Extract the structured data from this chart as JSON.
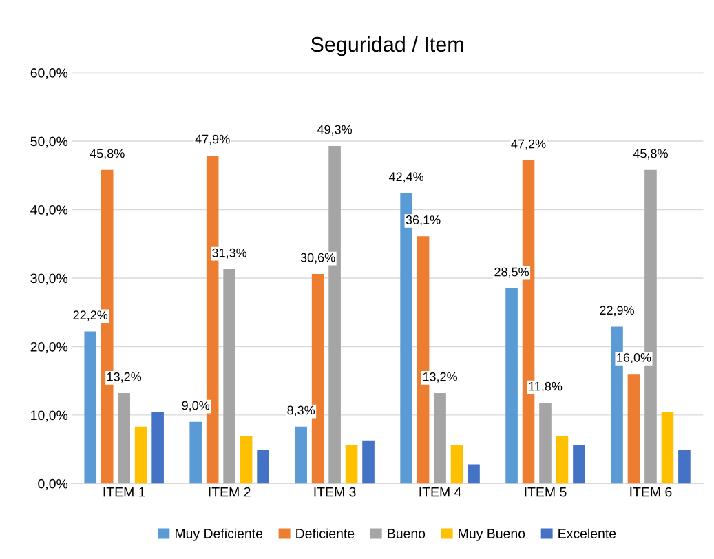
{
  "chart_data": {
    "type": "bar",
    "title": "Seguridad / Item",
    "categories": [
      "ITEM 1",
      "ITEM 2",
      "ITEM 3",
      "ITEM 4",
      "ITEM 5",
      "ITEM 6"
    ],
    "series": [
      {
        "name": "Muy Deficiente",
        "color": "#5b9bd5",
        "values": [
          22.2,
          9.0,
          8.3,
          42.4,
          28.5,
          22.9
        ],
        "value_labels": [
          "22,2%",
          "9,0%",
          "8,3%",
          "42,4%",
          "28,5%",
          "22,9%"
        ]
      },
      {
        "name": "Deficiente",
        "color": "#ed7d31",
        "values": [
          45.8,
          47.9,
          30.6,
          36.1,
          47.2,
          16.0
        ],
        "value_labels": [
          "45,8%",
          "47,9%",
          "30,6%",
          "36,1%",
          "47,2%",
          "16,0%"
        ]
      },
      {
        "name": "Bueno",
        "color": "#a5a5a5",
        "values": [
          13.2,
          31.3,
          49.3,
          13.2,
          11.8,
          45.8
        ],
        "value_labels": [
          "13,2%",
          "31,3%",
          "49,3%",
          "13,2%",
          "11,8%",
          "45,8%"
        ]
      },
      {
        "name": "Muy Bueno",
        "color": "#ffc000",
        "values": [
          8.3,
          6.9,
          5.6,
          5.6,
          6.9,
          10.4
        ]
      },
      {
        "name": "Excelente",
        "color": "#4472c4",
        "values": [
          10.4,
          4.9,
          6.3,
          2.8,
          5.6,
          4.9
        ]
      }
    ],
    "ylim": [
      0,
      60
    ],
    "yticks": [
      {
        "value": 0,
        "label": "0,0%"
      },
      {
        "value": 10,
        "label": "10,0%"
      },
      {
        "value": 20,
        "label": "20,0%"
      },
      {
        "value": 30,
        "label": "30,0%"
      },
      {
        "value": 40,
        "label": "40,0%"
      },
      {
        "value": 50,
        "label": "50,0%"
      },
      {
        "value": 60,
        "label": "60,0%"
      }
    ],
    "grid": "y",
    "legend": "bottom"
  }
}
